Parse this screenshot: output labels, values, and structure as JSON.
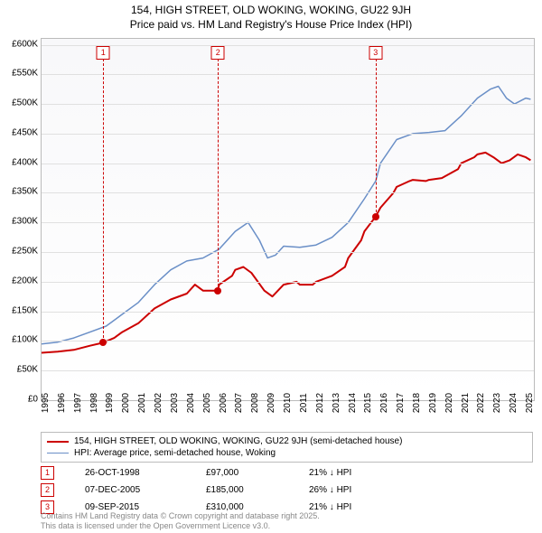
{
  "title_line1": "154, HIGH STREET, OLD WOKING, WOKING, GU22 9JH",
  "title_line2": "Price paid vs. HM Land Registry's House Price Index (HPI)",
  "chart": {
    "type": "line",
    "background_top": "#f8f8fa",
    "background_bottom": "#ffffff",
    "grid_color": "#e0e0e0",
    "border_color": "#bbbbbb",
    "x": {
      "min": 1995,
      "max": 2025.5,
      "ticks": [
        1995,
        1996,
        1997,
        1998,
        1999,
        2000,
        2001,
        2002,
        2003,
        2004,
        2005,
        2006,
        2007,
        2008,
        2009,
        2010,
        2011,
        2012,
        2013,
        2014,
        2015,
        2016,
        2017,
        2018,
        2019,
        2020,
        2021,
        2022,
        2023,
        2024,
        2025
      ]
    },
    "y": {
      "min": 0,
      "max": 610000,
      "ticks": [
        0,
        50000,
        100000,
        150000,
        200000,
        250000,
        300000,
        350000,
        400000,
        450000,
        500000,
        550000,
        600000
      ],
      "labels": [
        "£0",
        "£50K",
        "£100K",
        "£150K",
        "£200K",
        "£250K",
        "£300K",
        "£350K",
        "£400K",
        "£450K",
        "£500K",
        "£550K",
        "£600K"
      ]
    },
    "series": {
      "property": {
        "label": "154, HIGH STREET, OLD WOKING, WOKING, GU22 9JH (semi-detached house)",
        "color": "#cc0000",
        "width": 2,
        "points": [
          [
            1995,
            80000
          ],
          [
            1996,
            82000
          ],
          [
            1997,
            85000
          ],
          [
            1998,
            92000
          ],
          [
            1998.8,
            97000
          ],
          [
            1999.5,
            105000
          ],
          [
            2000,
            115000
          ],
          [
            2001,
            130000
          ],
          [
            2002,
            155000
          ],
          [
            2003,
            170000
          ],
          [
            2004,
            180000
          ],
          [
            2004.5,
            195000
          ],
          [
            2005,
            185000
          ],
          [
            2005.9,
            185000
          ],
          [
            2006,
            195000
          ],
          [
            2006.8,
            210000
          ],
          [
            2007,
            220000
          ],
          [
            2007.5,
            225000
          ],
          [
            2008,
            215000
          ],
          [
            2008.8,
            185000
          ],
          [
            2009.3,
            175000
          ],
          [
            2010,
            195000
          ],
          [
            2010.8,
            200000
          ],
          [
            2011,
            195000
          ],
          [
            2011.8,
            195000
          ],
          [
            2012,
            200000
          ],
          [
            2013,
            210000
          ],
          [
            2013.8,
            225000
          ],
          [
            2014,
            240000
          ],
          [
            2014.8,
            270000
          ],
          [
            2015,
            285000
          ],
          [
            2015.7,
            310000
          ],
          [
            2016,
            325000
          ],
          [
            2016.8,
            350000
          ],
          [
            2017,
            360000
          ],
          [
            2017.8,
            370000
          ],
          [
            2018,
            372000
          ],
          [
            2018.8,
            370000
          ],
          [
            2019,
            372000
          ],
          [
            2019.8,
            375000
          ],
          [
            2020,
            378000
          ],
          [
            2020.8,
            390000
          ],
          [
            2021,
            400000
          ],
          [
            2021.8,
            410000
          ],
          [
            2022,
            415000
          ],
          [
            2022.5,
            418000
          ],
          [
            2023,
            410000
          ],
          [
            2023.5,
            400000
          ],
          [
            2024,
            405000
          ],
          [
            2024.5,
            415000
          ],
          [
            2025,
            410000
          ],
          [
            2025.3,
            405000
          ]
        ]
      },
      "hpi": {
        "label": "HPI: Average price, semi-detached house, Woking",
        "color": "#6a8fc7",
        "width": 1.5,
        "points": [
          [
            1995,
            95000
          ],
          [
            1996,
            98000
          ],
          [
            1997,
            105000
          ],
          [
            1998,
            115000
          ],
          [
            1999,
            125000
          ],
          [
            2000,
            145000
          ],
          [
            2001,
            165000
          ],
          [
            2002,
            195000
          ],
          [
            2003,
            220000
          ],
          [
            2004,
            235000
          ],
          [
            2005,
            240000
          ],
          [
            2006,
            255000
          ],
          [
            2007,
            285000
          ],
          [
            2007.8,
            300000
          ],
          [
            2008.5,
            270000
          ],
          [
            2009,
            240000
          ],
          [
            2009.5,
            245000
          ],
          [
            2010,
            260000
          ],
          [
            2011,
            258000
          ],
          [
            2012,
            262000
          ],
          [
            2013,
            275000
          ],
          [
            2014,
            300000
          ],
          [
            2015,
            340000
          ],
          [
            2015.7,
            370000
          ],
          [
            2016,
            400000
          ],
          [
            2017,
            440000
          ],
          [
            2018,
            450000
          ],
          [
            2019,
            452000
          ],
          [
            2020,
            455000
          ],
          [
            2021,
            480000
          ],
          [
            2022,
            510000
          ],
          [
            2022.8,
            525000
          ],
          [
            2023.3,
            530000
          ],
          [
            2023.8,
            510000
          ],
          [
            2024.3,
            500000
          ],
          [
            2025,
            510000
          ],
          [
            2025.3,
            508000
          ]
        ]
      }
    },
    "markers": [
      {
        "num": "1",
        "year": 1998.82,
        "price": 97000,
        "date": "26-OCT-1998",
        "price_label": "£97,000",
        "delta": "21% ↓ HPI"
      },
      {
        "num": "2",
        "year": 2005.93,
        "price": 185000,
        "date": "07-DEC-2005",
        "price_label": "£185,000",
        "delta": "26% ↓ HPI"
      },
      {
        "num": "3",
        "year": 2015.69,
        "price": 310000,
        "date": "09-SEP-2015",
        "price_label": "£310,000",
        "delta": "21% ↓ HPI"
      }
    ]
  },
  "footer_line1": "Contains HM Land Registry data © Crown copyright and database right 2025.",
  "footer_line2": "This data is licensed under the Open Government Licence v3.0."
}
